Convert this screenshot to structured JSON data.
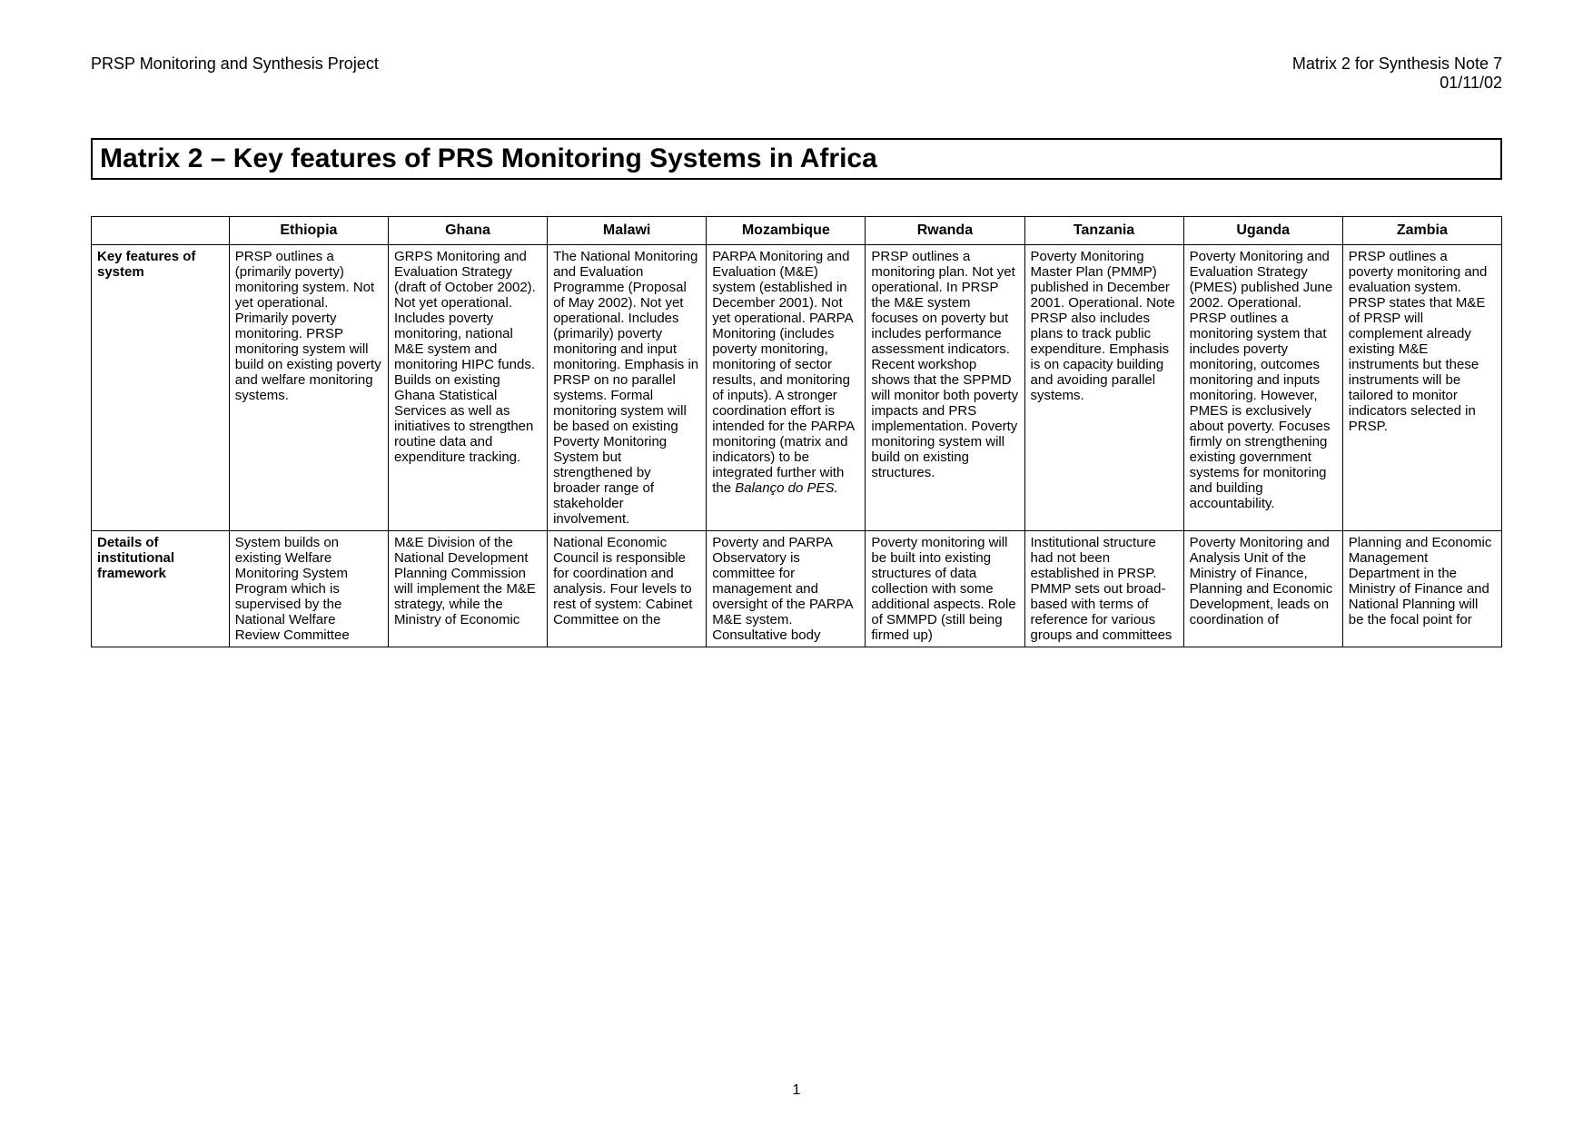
{
  "header": {
    "left": "PRSP Monitoring and Synthesis Project",
    "right_line1": "Matrix 2 for Synthesis Note 7",
    "right_line2": "01/11/02"
  },
  "title": "Matrix 2 – Key features of PRS Monitoring Systems in Africa",
  "page_number": "1",
  "columns": [
    "Ethiopia",
    "Ghana",
    "Malawi",
    "Mozambique",
    "Rwanda",
    "Tanzania",
    "Uganda",
    "Zambia"
  ],
  "rows": [
    {
      "label": "Key features of system",
      "cells": [
        "PRSP outlines a (primarily poverty) monitoring system. Not yet operational. Primarily poverty monitoring. PRSP monitoring system will build on existing poverty and welfare monitoring systems.",
        "GRPS Monitoring and Evaluation Strategy (draft of October 2002). Not yet operational. Includes poverty monitoring, national M&E system and monitoring HIPC funds. Builds on existing Ghana Statistical Services as well as initiatives to strengthen routine data and expenditure tracking.",
        "The National Monitoring and Evaluation Programme (Proposal of May 2002). Not yet operational. Includes (primarily) poverty monitoring and input monitoring. Emphasis in PRSP on no parallel systems. Formal monitoring system will be based on existing Poverty Monitoring System but strengthened by broader range of stakeholder involvement.",
        "PARPA Monitoring and Evaluation (M&E) system (established in December 2001). Not yet operational. PARPA Monitoring (includes poverty monitoring, monitoring of sector results, and monitoring of inputs). A stronger coordination effort is intended for the PARPA monitoring (matrix and indicators) to be integrated further with the ",
        "PRSP outlines a monitoring plan. Not yet operational. In PRSP the M&E system focuses on poverty but includes performance assessment indicators. Recent workshop shows that the SPPMD will monitor both poverty impacts and PRS implementation. Poverty monitoring system will build on existing structures.",
        "Poverty Monitoring Master Plan (PMMP) published in December 2001. Operational. Note PRSP also includes plans to track public expenditure. Emphasis is on capacity building and avoiding parallel systems.",
        "Poverty Monitoring and Evaluation Strategy (PMES) published June 2002. Operational. PRSP outlines a monitoring system that includes poverty monitoring, outcomes monitoring and inputs monitoring. However, PMES is exclusively about poverty. Focuses firmly on strengthening existing government systems for monitoring and building accountability.",
        "PRSP outlines a poverty monitoring and evaluation system. PRSP states that M&E of PRSP will complement already existing M&E instruments but these instruments will be tailored to monitor indicators selected in PRSP."
      ],
      "italic_suffix": [
        "",
        "",
        "",
        "Balanço do PES.",
        "",
        "",
        "",
        ""
      ]
    },
    {
      "label": "Details of institutional framework",
      "cells": [
        "System builds on existing Welfare Monitoring System Program which is supervised by the National Welfare Review Committee",
        "M&E Division of the National Development Planning Commission will implement the M&E strategy, while the Ministry of Economic",
        "National Economic Council is responsible for coordination and analysis. Four levels to rest of system: Cabinet Committee on the",
        "Poverty and PARPA Observatory is committee for management and oversight of the PARPA M&E system. Consultative body",
        "Poverty monitoring will be built into existing structures of data collection with some additional aspects. Role of SMMPD (still being firmed up)",
        "Institutional structure had not been established in PRSP. PMMP sets out broad-based with terms of reference for various groups and committees",
        "Poverty Monitoring and Analysis Unit of the Ministry of Finance, Planning and Economic Development, leads on coordination of",
        "Planning and Economic Management Department in the Ministry of Finance and National Planning will be the focal point for"
      ],
      "italic_suffix": [
        "",
        "",
        "",
        "",
        "",
        "",
        "",
        ""
      ]
    }
  ]
}
